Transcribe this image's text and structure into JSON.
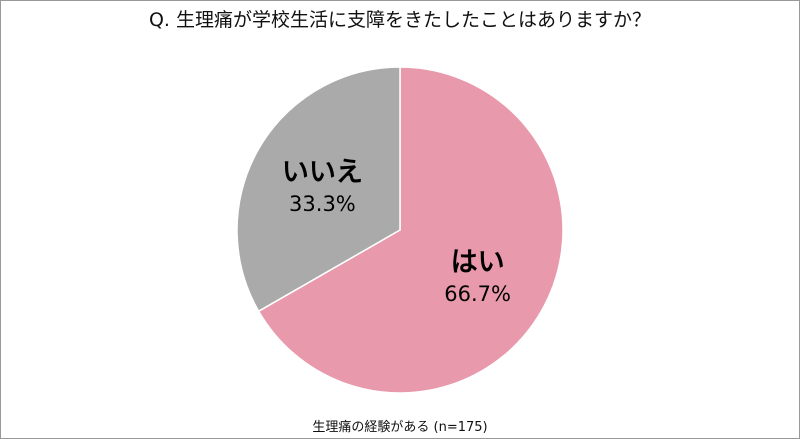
{
  "chart_data": {
    "type": "pie",
    "title": "Q. 生理痛が学校生活に支障をきたしたことはありますか？",
    "footnote": "生理痛の経験がある (n=175)",
    "slices": [
      {
        "label": "はい",
        "value": 66.7,
        "value_label": "66.7%",
        "color": "#E899AB"
      },
      {
        "label": "いいえ",
        "value": 33.3,
        "value_label": "33.3%",
        "color": "#AAAAAA"
      }
    ],
    "start": "top",
    "direction": "clockwise"
  }
}
